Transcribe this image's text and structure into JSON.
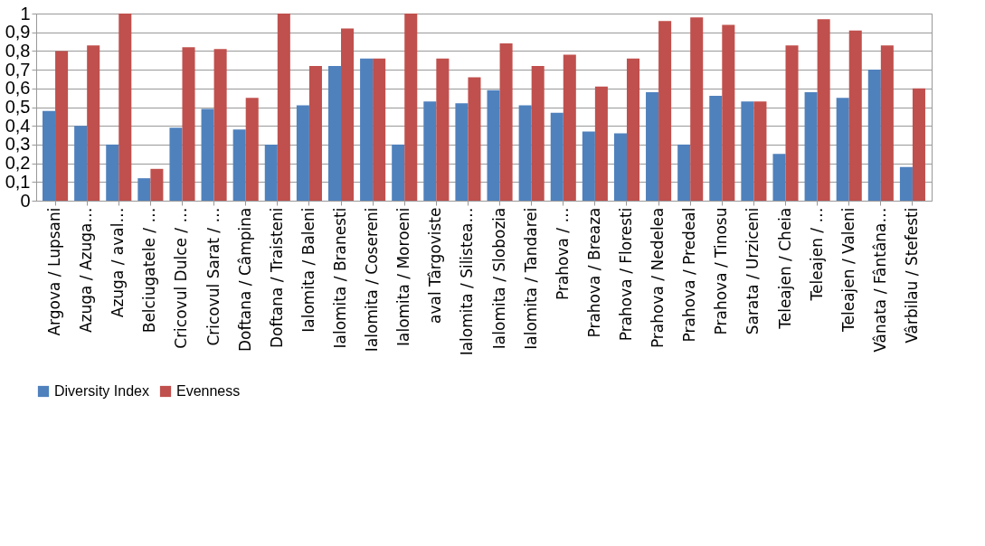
{
  "chart_data": {
    "type": "bar",
    "categories": [
      "Argova  / Lupsani",
      "Azuga / Azuga…",
      "Azuga / aval…",
      "Belciugatele / …",
      "Cricovul Dulce / …",
      "Cricovul Sarat / …",
      "Doftana  / Câmpina",
      "Doftana / Traisteni",
      "Ialomita / Baleni",
      "Ialomita / Branesti",
      "Ialomita / Cosereni",
      "Ialomita / Moroeni",
      "aval Târgoviste",
      "Ialomita / Silistea…",
      "Ialomita / Slobozia",
      "Ialomita / Tandarei",
      "Prahova / …",
      "Prahova  / Breaza",
      "Prahova / Floresti",
      "Prahova / Nedelea",
      "Prahova / Predeal",
      "Prahova / Tinosu",
      "Sarata / Urziceni",
      "Teleajen / Cheia",
      "Teleajen / …",
      "Teleajen / Valeni",
      "Vânata /  Fântâna…",
      "Vârbilau / Stefesti"
    ],
    "series": [
      {
        "name": "Diversity Index",
        "color": "#4f81bd",
        "values": [
          0.48,
          0.4,
          0.3,
          0.12,
          0.39,
          0.49,
          0.38,
          0.3,
          0.51,
          0.72,
          0.76,
          0.3,
          0.53,
          0.52,
          0.59,
          0.51,
          0.47,
          0.37,
          0.36,
          0.58,
          0.3,
          0.56,
          0.53,
          0.25,
          0.58,
          0.55,
          0.7,
          0.18
        ]
      },
      {
        "name": "Evenness",
        "color": "#c0504d",
        "values": [
          0.8,
          0.83,
          1.0,
          0.17,
          0.82,
          0.81,
          0.55,
          1.0,
          0.72,
          0.92,
          0.76,
          1.0,
          0.76,
          0.66,
          0.84,
          0.72,
          0.78,
          0.61,
          0.76,
          0.96,
          0.98,
          0.94,
          0.53,
          0.83,
          0.97,
          0.91,
          0.83,
          0.6
        ]
      }
    ],
    "ylim": [
      0,
      1
    ],
    "yticks": [
      {
        "value": 0,
        "label": "0"
      },
      {
        "value": 0.1,
        "label": "0,1"
      },
      {
        "value": 0.2,
        "label": "0,2"
      },
      {
        "value": 0.3,
        "label": "0,3"
      },
      {
        "value": 0.4,
        "label": "0,4"
      },
      {
        "value": 0.5,
        "label": "0,5"
      },
      {
        "value": 0.6,
        "label": "0,6"
      },
      {
        "value": 0.7,
        "label": "0,7"
      },
      {
        "value": 0.8,
        "label": "0,8"
      },
      {
        "value": 0.9,
        "label": "0,9"
      },
      {
        "value": 1,
        "label": "1"
      }
    ],
    "grid": "y",
    "legend": "bottom"
  }
}
